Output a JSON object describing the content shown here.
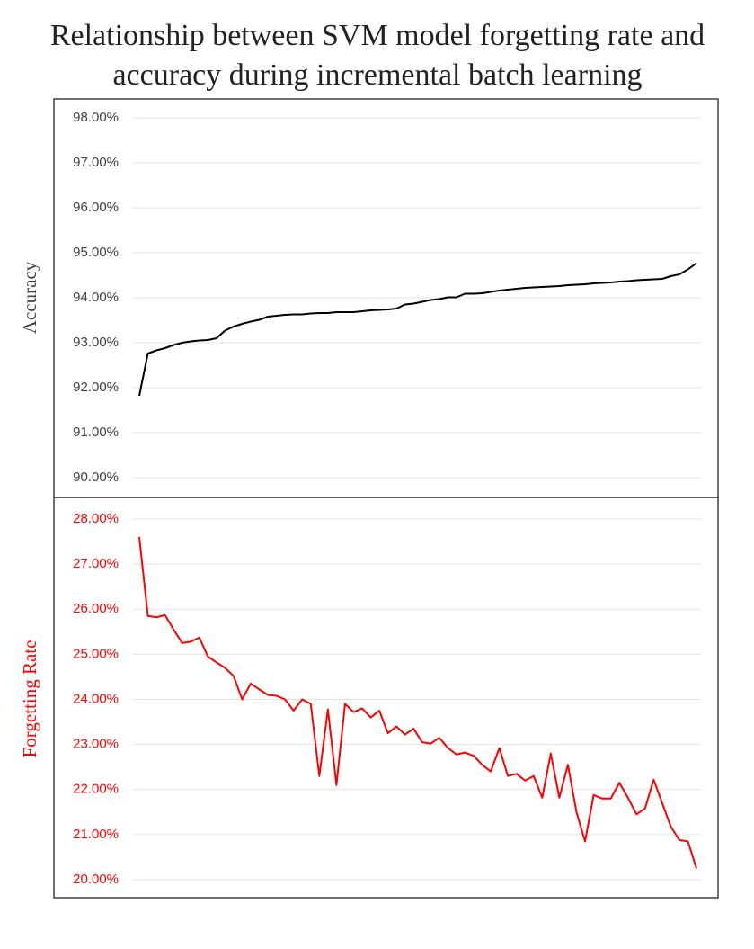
{
  "chart_data": [
    {
      "type": "line",
      "title": [
        "Relationship between SVM model forgetting rate and",
        "accuracy during incremental batch learning"
      ],
      "ylabel": "Accuracy",
      "color": "#000000",
      "grid": true,
      "ylim": [
        90,
        98
      ],
      "yticks": [
        {
          "value": 90,
          "label": "90.00%"
        },
        {
          "value": 91,
          "label": "91.00%"
        },
        {
          "value": 92,
          "label": "92.00%"
        },
        {
          "value": 93,
          "label": "93.00%"
        },
        {
          "value": 94,
          "label": "94.00%"
        },
        {
          "value": 95,
          "label": "95.00%"
        },
        {
          "value": 96,
          "label": "96.00%"
        },
        {
          "value": 97,
          "label": "97.00%"
        },
        {
          "value": 98,
          "label": "98.00%"
        }
      ],
      "values": [
        91.82,
        92.76,
        92.83,
        92.88,
        92.95,
        93.0,
        93.03,
        93.05,
        93.06,
        93.1,
        93.27,
        93.36,
        93.42,
        93.47,
        93.51,
        93.58,
        93.6,
        93.62,
        93.63,
        93.63,
        93.65,
        93.66,
        93.66,
        93.68,
        93.68,
        93.68,
        93.7,
        93.72,
        93.73,
        93.74,
        93.76,
        93.85,
        93.87,
        93.91,
        93.95,
        93.97,
        94.01,
        94.01,
        94.09,
        94.09,
        94.1,
        94.13,
        94.16,
        94.18,
        94.2,
        94.22,
        94.23,
        94.24,
        94.25,
        94.26,
        94.28,
        94.29,
        94.3,
        94.32,
        94.33,
        94.34,
        94.36,
        94.37,
        94.39,
        94.4,
        94.41,
        94.42,
        94.48,
        94.52,
        94.63,
        94.77
      ]
    },
    {
      "type": "line",
      "ylabel": "Forgetting Rate",
      "color": "#ff0000",
      "grid": true,
      "ylim": [
        20,
        28
      ],
      "yticks": [
        {
          "value": 20,
          "label": "20.00%"
        },
        {
          "value": 21,
          "label": "21.00%"
        },
        {
          "value": 22,
          "label": "22.00%"
        },
        {
          "value": 23,
          "label": "23.00%"
        },
        {
          "value": 24,
          "label": "24.00%"
        },
        {
          "value": 25,
          "label": "25.00%"
        },
        {
          "value": 26,
          "label": "26.00%"
        },
        {
          "value": 27,
          "label": "27.00%"
        },
        {
          "value": 28,
          "label": "28.00%"
        }
      ],
      "values": [
        27.6,
        25.85,
        25.82,
        25.87,
        25.55,
        25.25,
        25.28,
        25.37,
        24.95,
        24.82,
        24.7,
        24.52,
        24.0,
        24.35,
        24.22,
        24.1,
        24.08,
        24.0,
        23.75,
        24.0,
        23.9,
        22.3,
        23.78,
        22.1,
        23.9,
        23.72,
        23.8,
        23.6,
        23.75,
        23.25,
        23.4,
        23.22,
        23.35,
        23.05,
        23.02,
        23.15,
        22.92,
        22.78,
        22.82,
        22.75,
        22.55,
        22.4,
        22.92,
        22.3,
        22.35,
        22.2,
        22.3,
        21.82,
        22.8,
        21.82,
        22.55,
        21.5,
        20.85,
        21.88,
        21.8,
        21.8,
        22.15,
        21.82,
        21.45,
        21.58,
        22.22,
        21.7,
        21.18,
        20.88,
        20.85,
        20.25
      ]
    }
  ]
}
